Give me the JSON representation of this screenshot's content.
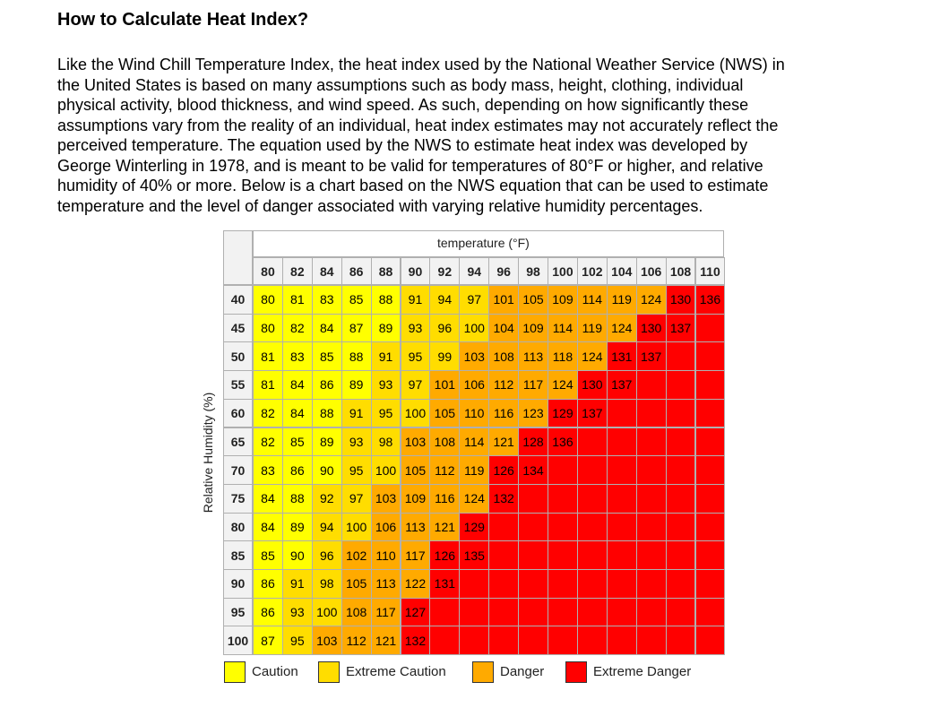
{
  "header": {
    "title": "How to Calculate Heat Index?"
  },
  "body": {
    "lines": [
      "Like the Wind Chill Temperature Index, the heat index used by the National Weather Service (NWS) in",
      "the United States is based on many assumptions such as body mass, height, clothing, individual",
      "physical activity, blood thickness, and wind speed. As such, depending on how significantly these",
      "assumptions vary from the reality of an individual, heat index estimates may not accurately reflect the",
      "perceived temperature. The equation used by the NWS to estimate heat index was developed by",
      "George Winterling in 1978, and is meant to be valid for temperatures of 80°F or higher, and relative",
      "humidity of 40% or more. Below is a chart based on the NWS equation that can be used to estimate",
      "temperature and the level of danger associated with varying relative humidity percentages."
    ]
  },
  "table": {
    "x_label": "temperature (°F)",
    "y_label": "Relative Humidity (%)",
    "temperatures": [
      80,
      82,
      84,
      86,
      88,
      90,
      92,
      94,
      96,
      98,
      100,
      102,
      104,
      106,
      108,
      110
    ],
    "rows": [
      {
        "humidity": 40,
        "values": [
          80,
          81,
          83,
          85,
          88,
          91,
          94,
          97,
          101,
          105,
          109,
          114,
          119,
          124,
          130,
          136
        ],
        "colors": [
          "#ff0",
          "#ff0",
          "#ff0",
          "#ff0",
          "#ff0",
          "#fd0",
          "#fd0",
          "#fd0",
          "#fa0",
          "#fa0",
          "#fa0",
          "#fa0",
          "#fa0",
          "#fa0",
          "#f00",
          "#f00"
        ]
      },
      {
        "humidity": 45,
        "values": [
          80,
          82,
          84,
          87,
          89,
          93,
          96,
          100,
          104,
          109,
          114,
          119,
          124,
          130,
          137
        ],
        "colors": [
          "#ff0",
          "#ff0",
          "#ff0",
          "#ff0",
          "#ff0",
          "#fd0",
          "#fd0",
          "#fd0",
          "#fa0",
          "#fa0",
          "#fa0",
          "#fa0",
          "#fa0",
          "#f00",
          "#f00",
          "#f00"
        ]
      },
      {
        "humidity": 50,
        "values": [
          81,
          83,
          85,
          88,
          91,
          95,
          99,
          103,
          108,
          113,
          118,
          124,
          131,
          137
        ],
        "colors": [
          "#ff0",
          "#ff0",
          "#ff0",
          "#ff0",
          "#fd0",
          "#fd0",
          "#fd0",
          "#fa0",
          "#fa0",
          "#fa0",
          "#fa0",
          "#fa0",
          "#f00",
          "#f00",
          "#f00",
          "#f00"
        ]
      },
      {
        "humidity": 55,
        "values": [
          81,
          84,
          86,
          89,
          93,
          97,
          101,
          106,
          112,
          117,
          124,
          130,
          137
        ],
        "colors": [
          "#ff0",
          "#ff0",
          "#ff0",
          "#ff0",
          "#fd0",
          "#fd0",
          "#fa0",
          "#fa0",
          "#fa0",
          "#fa0",
          "#fa0",
          "#f00",
          "#f00",
          "#f00",
          "#f00",
          "#f00"
        ]
      },
      {
        "humidity": 60,
        "values": [
          82,
          84,
          88,
          91,
          95,
          100,
          105,
          110,
          116,
          123,
          129,
          137
        ],
        "colors": [
          "#ff0",
          "#ff0",
          "#ff0",
          "#fd0",
          "#fd0",
          "#fd0",
          "#fa0",
          "#fa0",
          "#fa0",
          "#fa0",
          "#f00",
          "#f00",
          "#f00",
          "#f00",
          "#f00",
          "#f00"
        ]
      },
      {
        "humidity": 65,
        "values": [
          82,
          85,
          89,
          93,
          98,
          103,
          108,
          114,
          121,
          128,
          136
        ],
        "colors": [
          "#ff0",
          "#ff0",
          "#ff0",
          "#fd0",
          "#fd0",
          "#fa0",
          "#fa0",
          "#fa0",
          "#fa0",
          "#f00",
          "#f00",
          "#f00",
          "#f00",
          "#f00",
          "#f00",
          "#f00"
        ]
      },
      {
        "humidity": 70,
        "values": [
          83,
          86,
          90,
          95,
          100,
          105,
          112,
          119,
          126,
          134
        ],
        "colors": [
          "#ff0",
          "#ff0",
          "#ff0",
          "#fd0",
          "#fd0",
          "#fa0",
          "#fa0",
          "#fa0",
          "#f00",
          "#f00",
          "#f00",
          "#f00",
          "#f00",
          "#f00",
          "#f00",
          "#f00"
        ]
      },
      {
        "humidity": 75,
        "values": [
          84,
          88,
          92,
          97,
          103,
          109,
          116,
          124,
          132
        ],
        "colors": [
          "#ff0",
          "#ff0",
          "#fd0",
          "#fd0",
          "#fa0",
          "#fa0",
          "#fa0",
          "#fa0",
          "#f00",
          "#f00",
          "#f00",
          "#f00",
          "#f00",
          "#f00",
          "#f00",
          "#f00"
        ]
      },
      {
        "humidity": 80,
        "values": [
          84,
          89,
          94,
          100,
          106,
          113,
          121,
          129
        ],
        "colors": [
          "#ff0",
          "#ff0",
          "#fd0",
          "#fd0",
          "#fa0",
          "#fa0",
          "#fa0",
          "#f00",
          "#f00",
          "#f00",
          "#f00",
          "#f00",
          "#f00",
          "#f00",
          "#f00",
          "#f00"
        ]
      },
      {
        "humidity": 85,
        "values": [
          85,
          90,
          96,
          102,
          110,
          117,
          126,
          135
        ],
        "colors": [
          "#ff0",
          "#ff0",
          "#fd0",
          "#fa0",
          "#fa0",
          "#fa0",
          "#f00",
          "#f00",
          "#f00",
          "#f00",
          "#f00",
          "#f00",
          "#f00",
          "#f00",
          "#f00",
          "#f00"
        ]
      },
      {
        "humidity": 90,
        "values": [
          86,
          91,
          98,
          105,
          113,
          122,
          131
        ],
        "colors": [
          "#ff0",
          "#fd0",
          "#fd0",
          "#fa0",
          "#fa0",
          "#fa0",
          "#f00",
          "#f00",
          "#f00",
          "#f00",
          "#f00",
          "#f00",
          "#f00",
          "#f00",
          "#f00",
          "#f00"
        ]
      },
      {
        "humidity": 95,
        "values": [
          86,
          93,
          100,
          108,
          117,
          127
        ],
        "colors": [
          "#ff0",
          "#fd0",
          "#fd0",
          "#fa0",
          "#fa0",
          "#f00",
          "#f00",
          "#f00",
          "#f00",
          "#f00",
          "#f00",
          "#f00",
          "#f00",
          "#f00",
          "#f00",
          "#f00"
        ]
      },
      {
        "humidity": 100,
        "values": [
          87,
          95,
          103,
          112,
          121,
          132
        ],
        "colors": [
          "#ff0",
          "#fd0",
          "#fa0",
          "#fa0",
          "#fa0",
          "#f00",
          "#f00",
          "#f00",
          "#f00",
          "#f00",
          "#f00",
          "#f00",
          "#f00",
          "#f00",
          "#f00",
          "#f00"
        ]
      }
    ],
    "legend": [
      {
        "label": "Caution",
        "color": "#ff0"
      },
      {
        "label": "Extreme Caution",
        "color": "#fd0"
      },
      {
        "label": "Danger",
        "color": "#fa0"
      },
      {
        "label": "Extreme Danger",
        "color": "#f00"
      }
    ]
  }
}
